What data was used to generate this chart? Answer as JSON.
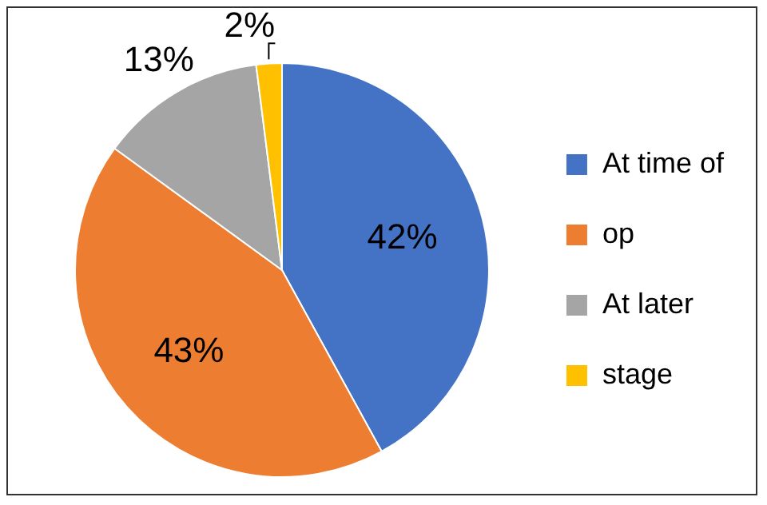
{
  "chart_data": {
    "type": "pie",
    "categories": [
      "At time of",
      "op",
      "At later",
      "stage"
    ],
    "values": [
      42,
      43,
      13,
      2
    ],
    "colors": [
      "#4472c4",
      "#ed7d31",
      "#a5a5a5",
      "#ffc000"
    ],
    "value_labels": [
      "42%",
      "43%",
      "13%",
      "2%"
    ],
    "legend": "right"
  }
}
